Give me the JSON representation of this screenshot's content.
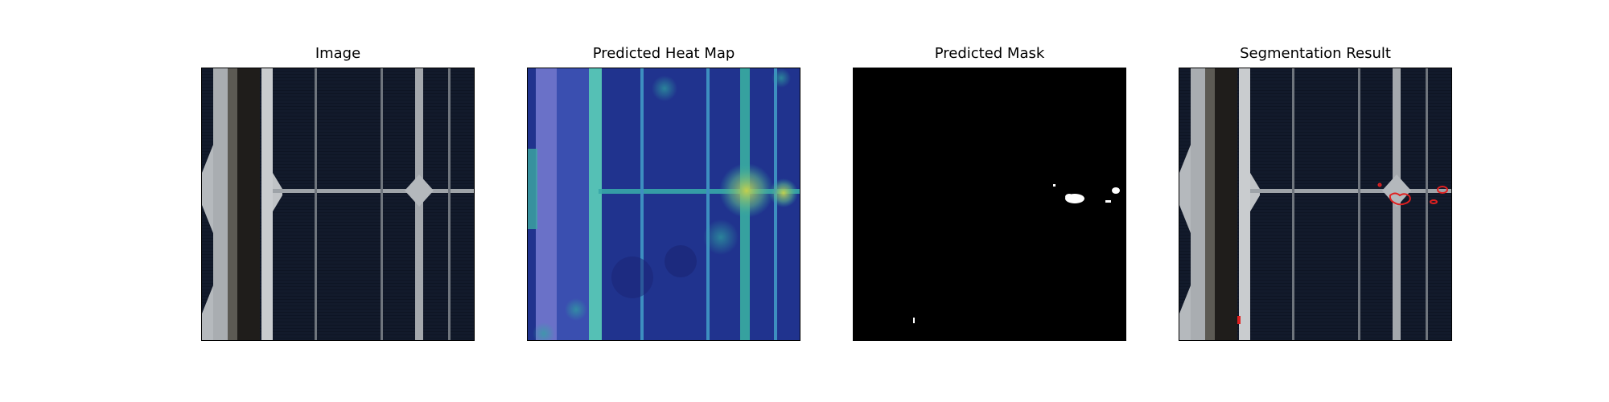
{
  "panels": [
    {
      "title": "Image",
      "content": "solar-cell-photo"
    },
    {
      "title": "Predicted Heat Map",
      "content": "heatmap-overlay"
    },
    {
      "title": "Predicted Mask",
      "content": "binary-mask"
    },
    {
      "title": "Segmentation Result",
      "content": "contour-overlay"
    }
  ],
  "colors": {
    "cell_background": "#121a2b",
    "busbar": "#bfc3c7",
    "finger": "#8f959c",
    "heatmap_low": "#1d2c8c",
    "heatmap_mid": "#2fa5a0",
    "heatmap_high": "#c9d24a",
    "mask_background": "#000000",
    "mask_foreground": "#ffffff",
    "contour": "#e02020"
  }
}
